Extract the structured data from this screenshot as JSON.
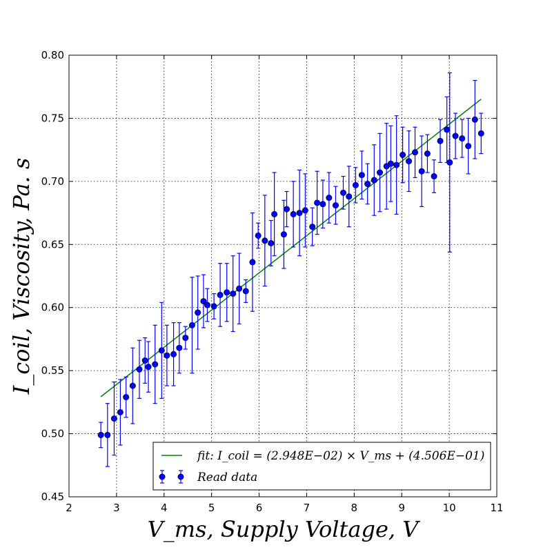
{
  "chart_data": {
    "type": "scatter",
    "title": "",
    "xlabel": "V_ms, Supply Voltage, V",
    "ylabel": "I_coil, Viscosity, Pa. s",
    "xlim": [
      2,
      11
    ],
    "ylim": [
      0.45,
      0.8
    ],
    "xticks": [
      "2",
      "3",
      "4",
      "5",
      "6",
      "7",
      "8",
      "9",
      "10",
      "11"
    ],
    "yticks": [
      "0.45",
      "0.50",
      "0.55",
      "0.60",
      "0.65",
      "0.70",
      "0.75",
      "0.80"
    ],
    "grid": true,
    "legend_position": "bottom-right",
    "colors": {
      "data": "#0000ff",
      "fit": "#008000"
    },
    "fit": {
      "name": "fit: I_coil = (2.948E−02) × V_ms + (4.506E−01)",
      "slope": 0.02948,
      "intercept": 0.4506,
      "x_range": [
        2.67,
        10.67
      ]
    },
    "series": [
      {
        "name": "Read data",
        "x": [
          2.67,
          2.81,
          2.95,
          3.08,
          3.2,
          3.34,
          3.48,
          3.6,
          3.67,
          3.81,
          3.95,
          4.06,
          4.2,
          4.32,
          4.45,
          4.59,
          4.71,
          4.83,
          4.91,
          5.05,
          5.18,
          5.32,
          5.45,
          5.58,
          5.72,
          5.86,
          5.98,
          6.12,
          6.25,
          6.32,
          6.52,
          6.58,
          6.72,
          6.85,
          6.97,
          7.12,
          7.22,
          7.34,
          7.47,
          7.61,
          7.77,
          7.89,
          8.03,
          8.16,
          8.28,
          8.42,
          8.54,
          8.68,
          8.77,
          8.89,
          9.02,
          9.15,
          9.28,
          9.42,
          9.54,
          9.68,
          9.81,
          9.95,
          10.01,
          10.13,
          10.27,
          10.4,
          10.54,
          10.67
        ],
        "y": [
          0.499,
          0.499,
          0.512,
          0.517,
          0.529,
          0.538,
          0.551,
          0.558,
          0.553,
          0.555,
          0.566,
          0.562,
          0.563,
          0.568,
          0.576,
          0.586,
          0.596,
          0.605,
          0.602,
          0.601,
          0.61,
          0.612,
          0.611,
          0.615,
          0.613,
          0.636,
          0.657,
          0.653,
          0.651,
          0.674,
          0.658,
          0.678,
          0.674,
          0.675,
          0.677,
          0.664,
          0.683,
          0.682,
          0.687,
          0.681,
          0.691,
          0.688,
          0.697,
          0.705,
          0.698,
          0.701,
          0.707,
          0.712,
          0.714,
          0.713,
          0.721,
          0.716,
          0.723,
          0.708,
          0.722,
          0.704,
          0.732,
          0.741,
          0.715,
          0.736,
          0.734,
          0.728,
          0.749,
          0.738
        ],
        "yerr": [
          0.01,
          0.025,
          0.029,
          0.026,
          0.016,
          0.03,
          0.023,
          0.018,
          0.02,
          0.031,
          0.038,
          0.024,
          0.025,
          0.02,
          0.009,
          0.038,
          0.029,
          0.021,
          0.013,
          0.01,
          0.025,
          0.023,
          0.03,
          0.028,
          0.009,
          0.039,
          0.01,
          0.036,
          0.018,
          0.033,
          0.027,
          0.014,
          0.026,
          0.034,
          0.029,
          0.015,
          0.025,
          0.019,
          0.02,
          0.015,
          0.013,
          0.024,
          0.014,
          0.019,
          0.016,
          0.028,
          0.031,
          0.034,
          0.03,
          0.039,
          0.022,
          0.024,
          0.02,
          0.028,
          0.015,
          0.013,
          0.017,
          0.026,
          0.071,
          0.018,
          0.015,
          0.022,
          0.031,
          0.016
        ]
      }
    ]
  }
}
